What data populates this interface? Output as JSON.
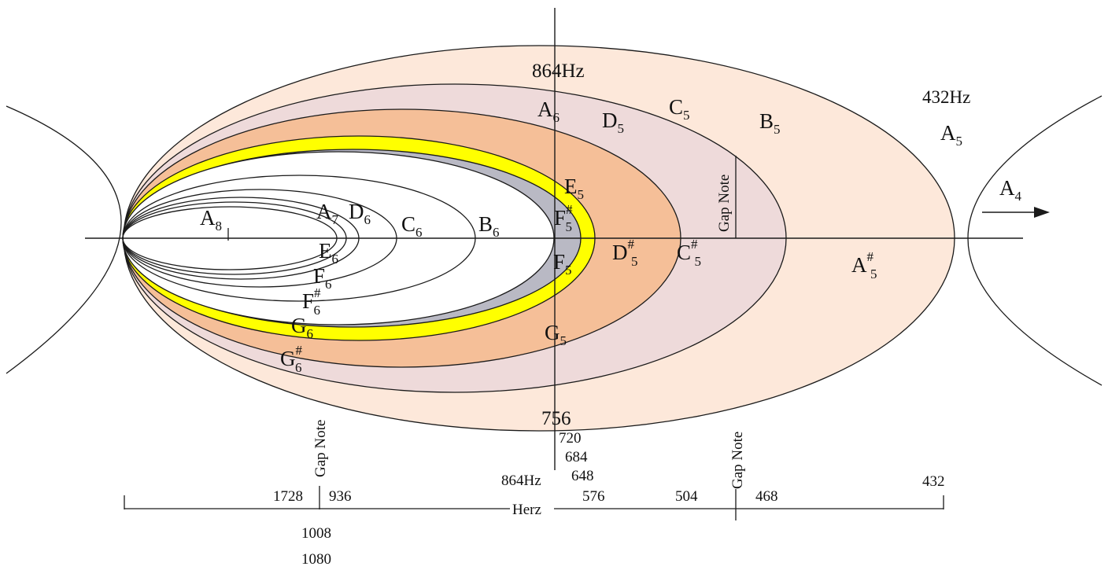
{
  "colors": {
    "outer": "#fde8da",
    "mauve": "#eedada",
    "orange": "#f5bf98",
    "yellow": "#ffff00",
    "gray": "#b9b9c4",
    "inner": "#ffffff",
    "stroke": "#1a1a1a"
  },
  "ellipse_order": [
    "outer",
    "mauve",
    "orange",
    "yellow",
    "gray",
    "inner"
  ],
  "inner_note_loops": 5,
  "top_labels": {
    "hz864": "864Hz",
    "hz432": "432Hz"
  },
  "notes": {
    "A6": {
      "base": "A",
      "sup": "",
      "sub": "6"
    },
    "D5": {
      "base": "D",
      "sup": "",
      "sub": "5"
    },
    "C5": {
      "base": "C",
      "sup": "",
      "sub": "5"
    },
    "B5": {
      "base": "B",
      "sup": "",
      "sub": "5"
    },
    "A5": {
      "base": "A",
      "sup": "",
      "sub": "5"
    },
    "A4": {
      "base": "A",
      "sup": "",
      "sub": "4"
    },
    "E5": {
      "base": "E",
      "sup": "",
      "sub": "5"
    },
    "Fs5": {
      "base": "F",
      "sup": "#",
      "sub": "5"
    },
    "A8": {
      "base": "A",
      "sup": "",
      "sub": "8"
    },
    "A7": {
      "base": "A",
      "sup": "",
      "sub": "7"
    },
    "D6": {
      "base": "D",
      "sup": "",
      "sub": "6"
    },
    "C6": {
      "base": "C",
      "sup": "",
      "sub": "6"
    },
    "B6": {
      "base": "B",
      "sup": "",
      "sub": "6"
    },
    "Ds5": {
      "base": "D",
      "sup": "#",
      "sub": "5"
    },
    "Cs5": {
      "base": "C",
      "sup": "#",
      "sub": "5"
    },
    "As5": {
      "base": "A",
      "sup": "#",
      "sub": "5"
    },
    "F5": {
      "base": "F",
      "sup": "",
      "sub": "5"
    },
    "E6": {
      "base": "E",
      "sup": "",
      "sub": "6"
    },
    "F6": {
      "base": "F",
      "sup": "",
      "sub": "6"
    },
    "Fs6": {
      "base": "F",
      "sup": "#",
      "sub": "6"
    },
    "G6": {
      "base": "G",
      "sup": "",
      "sub": "6"
    },
    "G5": {
      "base": "G",
      "sup": "",
      "sub": "5"
    },
    "Gs6": {
      "base": "G",
      "sup": "#",
      "sub": "6"
    }
  },
  "gap_note": "Gap Note",
  "stack": [
    "756",
    "720",
    "684",
    "648",
    "576",
    "504"
  ],
  "scale": {
    "v1728": "1728",
    "v936": "936",
    "v864": "864Hz",
    "v468": "468",
    "v432": "432",
    "herz": "Herz",
    "v1008": "1008",
    "v1080": "1080"
  }
}
